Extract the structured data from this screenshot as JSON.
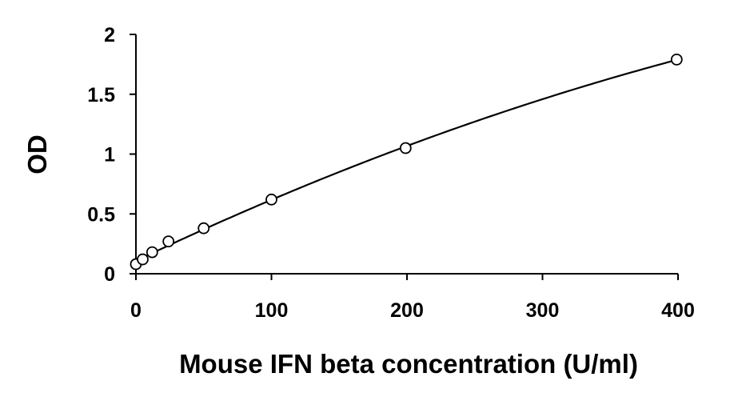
{
  "chart_data": {
    "type": "scatter",
    "title": "",
    "xlabel": "Mouse IFN beta concentration (U/ml)",
    "ylabel": "OD",
    "xlim": [
      0,
      400
    ],
    "ylim": [
      0,
      2
    ],
    "x_ticks": [
      0,
      100,
      200,
      300,
      400
    ],
    "x_tick_labels": [
      "0",
      "100",
      "200",
      "300",
      "400"
    ],
    "y_ticks": [
      0,
      0.5,
      1,
      1.5,
      2
    ],
    "y_tick_labels": [
      "0",
      "0.5",
      "1",
      "1.5",
      "2"
    ],
    "grid": false,
    "legend": "none",
    "points": [
      {
        "x": 0,
        "y": 0.08
      },
      {
        "x": 5,
        "y": 0.12
      },
      {
        "x": 12,
        "y": 0.18
      },
      {
        "x": 24,
        "y": 0.27
      },
      {
        "x": 50,
        "y": 0.38
      },
      {
        "x": 100,
        "y": 0.62
      },
      {
        "x": 199,
        "y": 1.05
      },
      {
        "x": 399,
        "y": 1.79
      }
    ],
    "fit_line": {
      "type": "smooth-curve",
      "color": "#000000"
    },
    "marker": {
      "shape": "open-circle",
      "color": "#000000"
    }
  }
}
